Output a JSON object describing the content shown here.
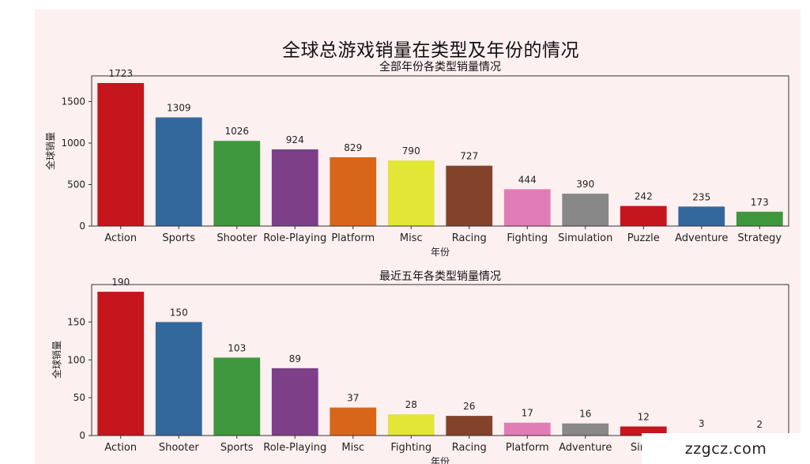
{
  "figure": {
    "suptitle": "全球总游戏销量在类型及年份的情况",
    "watermark": "zzgcz.com"
  },
  "chart_data": [
    {
      "type": "bar",
      "title": "全部年份各类型销量情况",
      "xlabel": "年份",
      "ylabel": "全球销量",
      "categories": [
        "Action",
        "Sports",
        "Shooter",
        "Role-Playing",
        "Platform",
        "Misc",
        "Racing",
        "Fighting",
        "Simulation",
        "Puzzle",
        "Adventure",
        "Strategy"
      ],
      "values": [
        1723,
        1309,
        1026,
        924,
        829,
        790,
        727,
        444,
        390,
        242,
        235,
        173
      ],
      "colors": [
        "#c4161c",
        "#33689d",
        "#3f973d",
        "#7d4088",
        "#d7661a",
        "#e2e637",
        "#82432a",
        "#e27cb6",
        "#888888",
        "#c4161c",
        "#33689d",
        "#3f973d"
      ],
      "ylim": [
        0,
        1809
      ],
      "yticks": [
        0,
        500,
        1000,
        1500
      ],
      "grid": false
    },
    {
      "type": "bar",
      "title": "最近五年各类型销量情况",
      "xlabel": "年份",
      "ylabel": "全球销量",
      "categories": [
        "Action",
        "Shooter",
        "Sports",
        "Role-Playing",
        "Misc",
        "Fighting",
        "Racing",
        "Platform",
        "Adventure",
        "Simu",
        "",
        ""
      ],
      "values": [
        190,
        150,
        103,
        89,
        37,
        28,
        26,
        17,
        16,
        12,
        3,
        2
      ],
      "colors": [
        "#c4161c",
        "#33689d",
        "#3f973d",
        "#7d4088",
        "#d7661a",
        "#e2e637",
        "#82432a",
        "#e27cb6",
        "#888888",
        "#c4161c",
        "#33689d",
        "#3f973d"
      ],
      "ylim": [
        0,
        199.5
      ],
      "yticks": [
        0,
        50,
        100,
        150
      ],
      "grid": false
    }
  ]
}
